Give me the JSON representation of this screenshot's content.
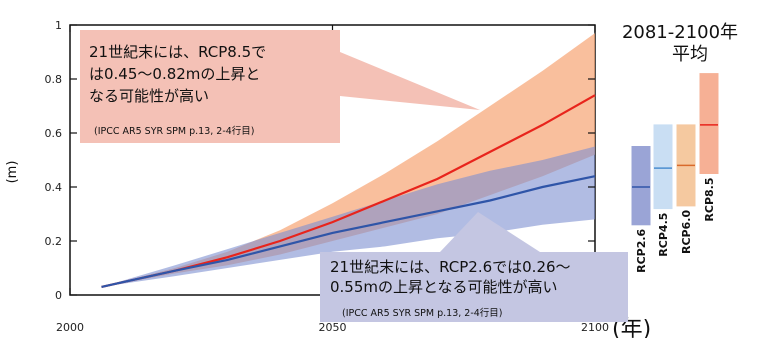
{
  "chart_data": {
    "type": "area",
    "xlabel": "(年)",
    "ylabel": "(m)",
    "xlim": [
      2000,
      2100
    ],
    "ylim": [
      0,
      1.0
    ],
    "x_ticks": [
      2000,
      2050,
      2100
    ],
    "x_tick_labels": [
      "2000",
      "2050",
      "2100"
    ],
    "y_ticks": [
      0,
      0.2,
      0.4,
      0.6,
      0.8,
      1
    ],
    "y_tick_labels": [
      "0",
      "0.2",
      "0.4",
      "0.6",
      "0.8",
      "1"
    ],
    "series": [
      {
        "name": "RCP8.5",
        "color": "#e8241c",
        "band_color": "#f7a97c",
        "x": [
          2006,
          2020,
          2030,
          2040,
          2050,
          2060,
          2070,
          2080,
          2090,
          2100
        ],
        "values": [
          0.03,
          0.09,
          0.14,
          0.2,
          0.27,
          0.35,
          0.43,
          0.53,
          0.63,
          0.74
        ],
        "lower": [
          0.03,
          0.08,
          0.11,
          0.15,
          0.2,
          0.25,
          0.3,
          0.37,
          0.44,
          0.52
        ],
        "upper": [
          0.03,
          0.1,
          0.16,
          0.24,
          0.34,
          0.45,
          0.57,
          0.7,
          0.83,
          0.97
        ]
      },
      {
        "name": "RCP2.6",
        "color": "#2f55a8",
        "band_color": "#7d8fd0",
        "x": [
          2006,
          2020,
          2030,
          2040,
          2050,
          2060,
          2070,
          2080,
          2090,
          2100
        ],
        "values": [
          0.03,
          0.09,
          0.13,
          0.18,
          0.23,
          0.27,
          0.31,
          0.35,
          0.4,
          0.44
        ],
        "lower": [
          0.03,
          0.07,
          0.1,
          0.13,
          0.16,
          0.18,
          0.21,
          0.23,
          0.26,
          0.28
        ],
        "upper": [
          0.03,
          0.11,
          0.17,
          0.23,
          0.29,
          0.35,
          0.41,
          0.46,
          0.5,
          0.55
        ]
      }
    ],
    "annotations": [
      {
        "lines": [
          "21世紀末には、RCP8.5で",
          "は0.45～0.82mの上昇と",
          "なる可能性が高い"
        ],
        "citation": "(IPCC AR5 SYR SPM  p.13, 2-4行目)",
        "color": "#f4c1b6"
      },
      {
        "lines": [
          "21世紀末には、RCP2.6では0.26～",
          "0.55mの上昇となる可能性が高い"
        ],
        "citation": "(IPCC AR5 SYR SPM p.13, 2-4行目)",
        "color": "#c4c6e2"
      }
    ],
    "side_panel": {
      "title_lines": [
        "2081-2100年",
        "平均"
      ],
      "boxes": [
        {
          "label": "RCP2.6",
          "low": 0.26,
          "mid": 0.4,
          "high": 0.55,
          "fill": "#9aa4d6",
          "line": "#2f55a8"
        },
        {
          "label": "RCP4.5",
          "low": 0.32,
          "mid": 0.47,
          "high": 0.63,
          "fill": "#c9def3",
          "line": "#4c8ed0"
        },
        {
          "label": "RCP6.0",
          "low": 0.33,
          "mid": 0.48,
          "high": 0.63,
          "fill": "#f5c9a0",
          "line": "#d96a2b"
        },
        {
          "label": "RCP8.5",
          "low": 0.45,
          "mid": 0.63,
          "high": 0.82,
          "fill": "#f6b095",
          "line": "#e8241c"
        }
      ]
    }
  }
}
